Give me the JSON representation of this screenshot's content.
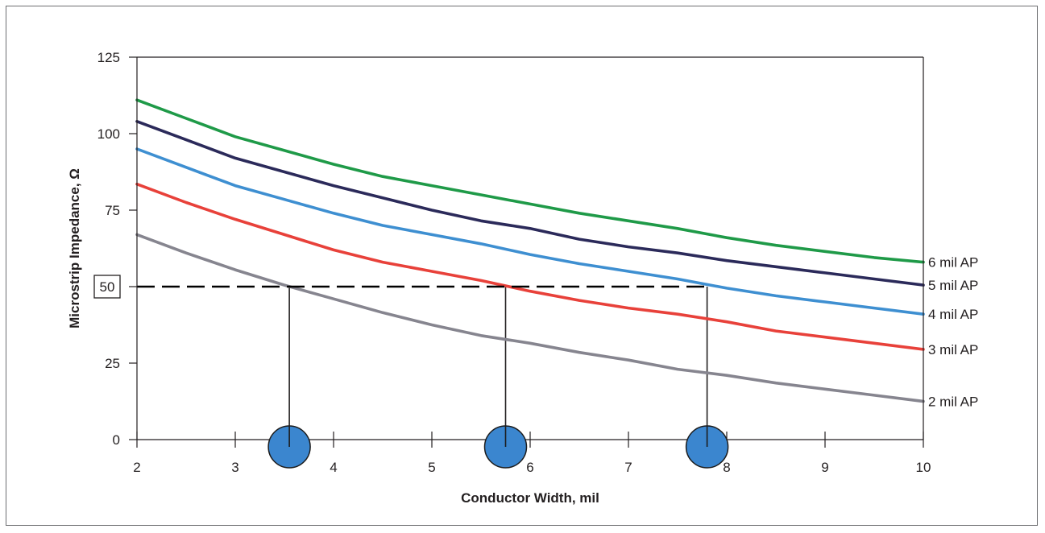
{
  "chart_data": {
    "type": "line",
    "title": "",
    "xlabel": "Conductor Width, mil",
    "ylabel": "Microstrip Impedance, Ω",
    "xlim": [
      2,
      10
    ],
    "ylim": [
      0,
      125
    ],
    "x_ticks": [
      2,
      3,
      4,
      5,
      6,
      7,
      8,
      9,
      10
    ],
    "y_ticks": [
      0,
      25,
      75,
      100,
      125
    ],
    "highlighted_y_tick": 50,
    "grid": false,
    "legend": "direct labels at right end of lines",
    "x": [
      2,
      2.5,
      3,
      3.5,
      4,
      4.5,
      5,
      5.5,
      6,
      6.5,
      7,
      7.5,
      8,
      8.5,
      9,
      9.5,
      10
    ],
    "series": [
      {
        "name": "6 mil AP",
        "color": "#1f9a48",
        "values": [
          111,
          105,
          99,
          94.5,
          90,
          86,
          83,
          80,
          77,
          74,
          71.5,
          69,
          66,
          63.5,
          61.5,
          59.5,
          58
        ]
      },
      {
        "name": "5 mil AP",
        "color": "#2b2a5a",
        "values": [
          104,
          98,
          92,
          87.5,
          83,
          79,
          75,
          71.5,
          69,
          65.5,
          63,
          61,
          58.5,
          56.5,
          54.5,
          52.5,
          50.5
        ]
      },
      {
        "name": "4 mil AP",
        "color": "#3e8fd1",
        "values": [
          95,
          89,
          83,
          78.5,
          74,
          70,
          67,
          64,
          60.5,
          57.5,
          55,
          52.5,
          49.5,
          47,
          45,
          43,
          41
        ]
      },
      {
        "name": "3 mil AP",
        "color": "#e8413a",
        "values": [
          83.5,
          77.5,
          72,
          67,
          62,
          58,
          55,
          52,
          48.5,
          45.5,
          43,
          41,
          38.5,
          35.5,
          33.5,
          31.5,
          29.5
        ]
      },
      {
        "name": "2 mil AP",
        "color": "#86858f",
        "values": [
          67,
          61,
          55.5,
          50.5,
          46,
          41.5,
          37.5,
          34,
          31.5,
          28.5,
          26,
          23,
          21,
          18.5,
          16.5,
          14.5,
          12.5
        ]
      }
    ],
    "reference_line": {
      "y": 50,
      "x_from": 2,
      "x_to": 7.8,
      "style": "dashed",
      "color": "#000000"
    },
    "markers": [
      {
        "x": 3.55,
        "color": "#3b86cf"
      },
      {
        "x": 5.75,
        "color": "#3b86cf"
      },
      {
        "x": 7.8,
        "color": "#3b86cf"
      }
    ]
  }
}
